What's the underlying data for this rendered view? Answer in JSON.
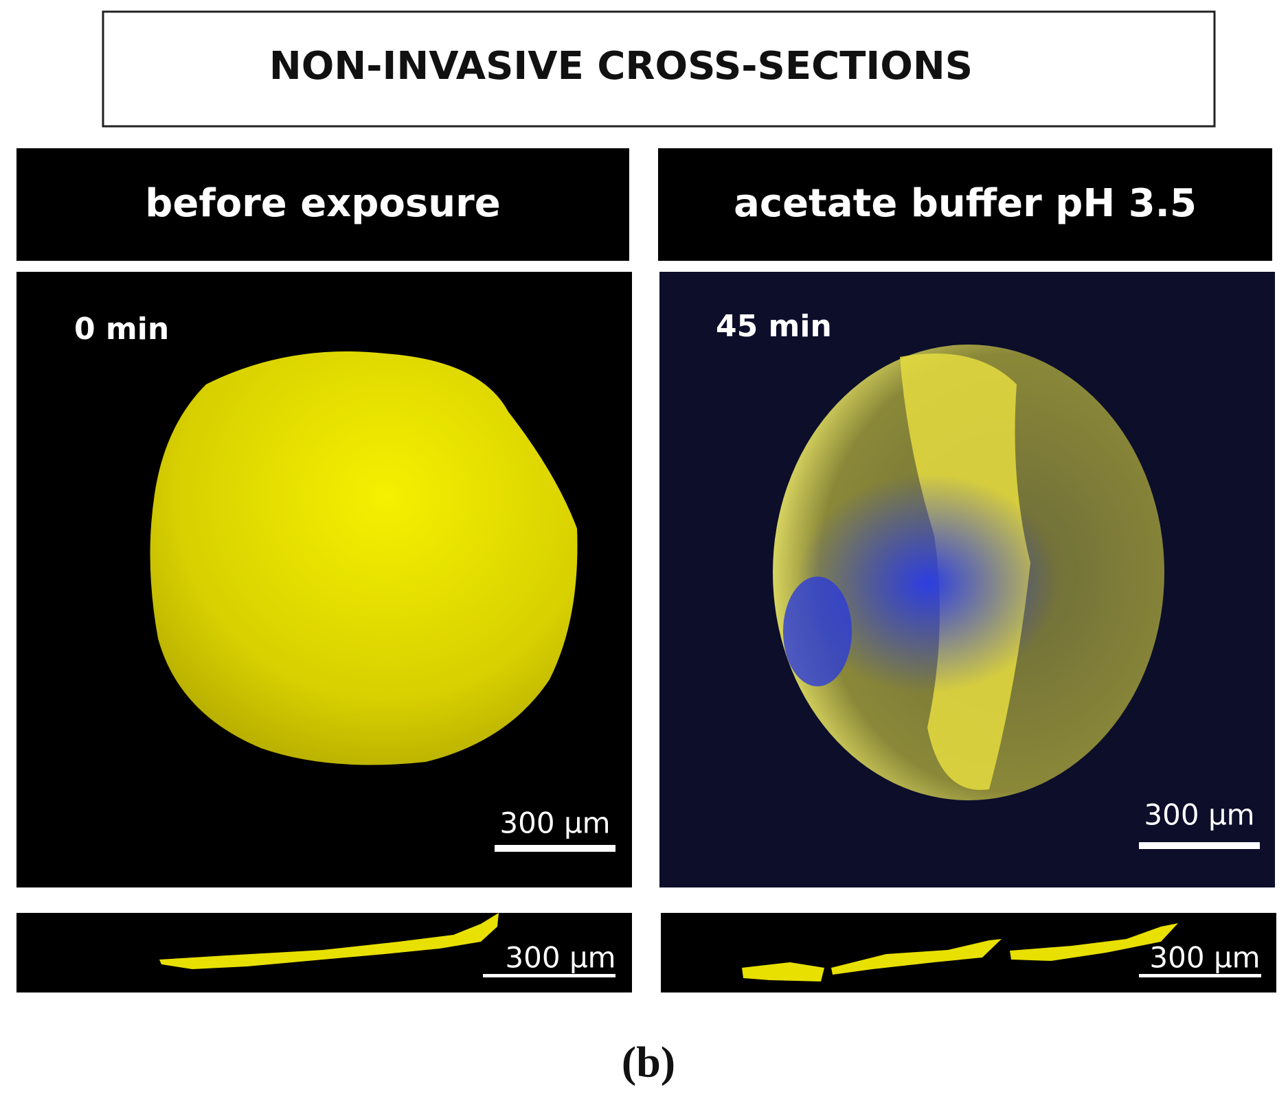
{
  "header": {
    "title": "NON-INVASIVE CROSS-SECTIONS"
  },
  "panels": [
    {
      "title": "before exposure",
      "time": "0 min",
      "scale_label": "300 µm",
      "strip_scale_label": "300 µm"
    },
    {
      "title": "acetate buffer pH 3.5",
      "time": "45 min",
      "scale_label": "300 µm",
      "strip_scale_label": "300 µm"
    }
  ],
  "caption": "(b)"
}
